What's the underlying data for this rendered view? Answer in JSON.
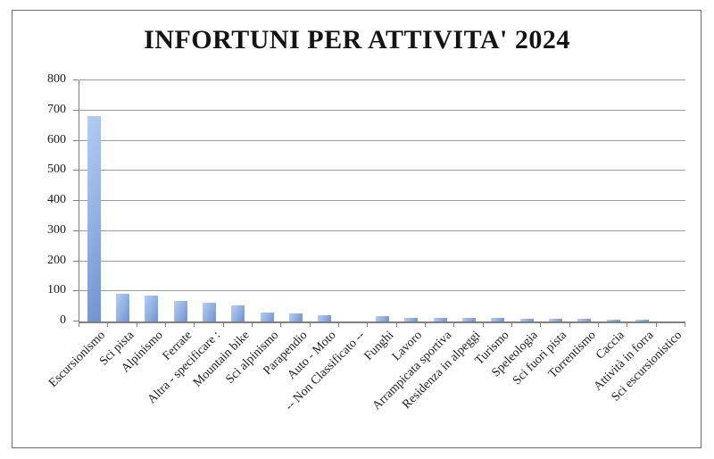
{
  "title": "INFORTUNI PER ATTIVITA' 2024",
  "chart_data": {
    "type": "bar",
    "title": "INFORTUNI PER ATTIVITA' 2024",
    "categories": [
      "Escursionismo",
      "Sci pista",
      "Alpinismo",
      "Ferrate",
      "Altra - specificare :",
      "Mountain bike",
      "Sci alpinismo",
      "Parapendio",
      "Auto - Moto",
      "-- Non Classificato --",
      "Funghi",
      "Lavoro",
      "Arrampicata sportiva",
      "Residenza in alpeggi",
      "Turismo",
      "Speleologia",
      "Sci fuori pista",
      "Torrentismo",
      "Caccia",
      "Attività in forra",
      "Sci escursionistico"
    ],
    "values": [
      681,
      91,
      86,
      68,
      62,
      52,
      31,
      27,
      20,
      0,
      17,
      13,
      13,
      12,
      12,
      10,
      10,
      9,
      7,
      6,
      0
    ],
    "xlabel": "",
    "ylabel": "",
    "ylim": [
      0,
      800
    ],
    "yticks": [
      0,
      100,
      200,
      300,
      400,
      500,
      600,
      700,
      800
    ],
    "grid": "horizontal-only",
    "legend": "none",
    "bar_color_top": "#b3cdf3",
    "bar_color_bottom": "#6e92cf",
    "gridline_color": "#9d9d9d",
    "axis_color": "#7f7f7f",
    "text_color": "#1a1a1a"
  }
}
